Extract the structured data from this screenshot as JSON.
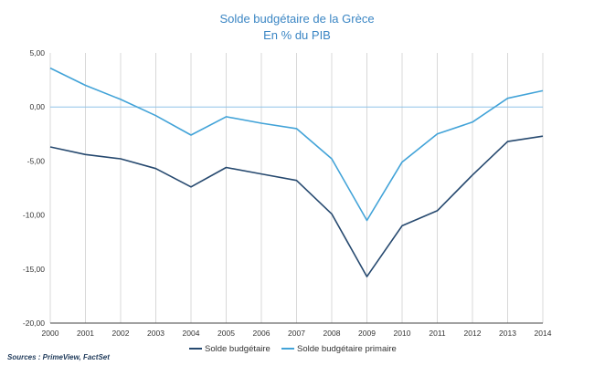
{
  "chart_data": {
    "type": "line",
    "title": "Solde budgétaire de la Grèce",
    "subtitle": "En % du PIB",
    "source": "Sources : PrimeView, FactSet",
    "x": [
      "2000",
      "2001",
      "2002",
      "2003",
      "2004",
      "2005",
      "2006",
      "2007",
      "2008",
      "2009",
      "2010",
      "2011",
      "2012",
      "2013",
      "2014"
    ],
    "ylim": [
      -20,
      5
    ],
    "yticks": [
      5,
      0,
      -5,
      -10,
      -15,
      -20
    ],
    "ytick_labels": [
      "5,00",
      "0,00",
      "-5,00",
      "-10,00",
      "-15,00",
      "-20,00"
    ],
    "grid": {
      "vertical": true,
      "horizontal_at_zero": true
    },
    "legend_position": "bottom",
    "series": [
      {
        "name": "Solde budgétaire",
        "color": "#26496f",
        "values": [
          -3.7,
          -4.4,
          -4.8,
          -5.7,
          -7.4,
          -5.6,
          -6.2,
          -6.8,
          -9.9,
          -15.7,
          -11.0,
          -9.6,
          -6.3,
          -3.2,
          -2.7
        ]
      },
      {
        "name": "Solde budgétaire primaire",
        "color": "#42a3d8",
        "values": [
          3.6,
          2.0,
          0.7,
          -0.8,
          -2.6,
          -0.9,
          -1.5,
          -2.0,
          -4.8,
          -10.5,
          -5.1,
          -2.5,
          -1.4,
          0.8,
          1.5
        ]
      }
    ]
  }
}
